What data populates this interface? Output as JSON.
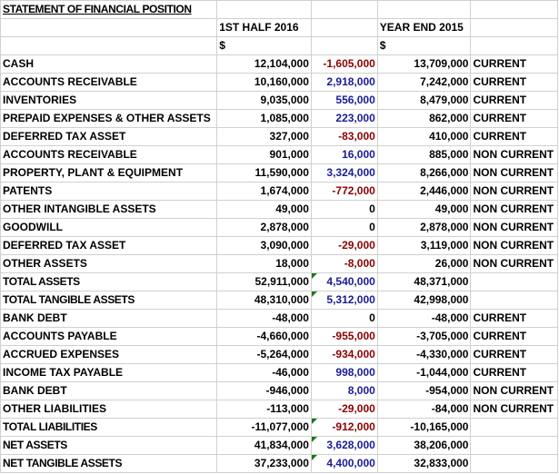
{
  "title": "STATEMENT OF FINANCIAL POSITION",
  "headers": {
    "period1": "1ST HALF 2016",
    "period2": "YEAR END 2015",
    "currency1": "$",
    "currency2": "$"
  },
  "colors": {
    "negative_change": "#8b0000",
    "positive_change": "#1a1a99"
  },
  "rows": [
    {
      "label": "CASH",
      "h1": "12,104,000",
      "chg": "-1,605,000",
      "dir": "neg",
      "ye": "13,709,000",
      "cls": "CURRENT"
    },
    {
      "label": "ACCOUNTS RECEIVABLE",
      "h1": "10,160,000",
      "chg": "2,918,000",
      "dir": "pos",
      "ye": "7,242,000",
      "cls": "CURRENT"
    },
    {
      "label": "INVENTORIES",
      "h1": "9,035,000",
      "chg": "556,000",
      "dir": "pos",
      "ye": "8,479,000",
      "cls": "CURRENT"
    },
    {
      "label": "PREPAID EXPENSES & OTHER ASSETS",
      "h1": "1,085,000",
      "chg": "223,000",
      "dir": "pos",
      "ye": "862,000",
      "cls": "CURRENT"
    },
    {
      "label": "DEFERRED TAX ASSET",
      "h1": "327,000",
      "chg": "-83,000",
      "dir": "neg",
      "ye": "410,000",
      "cls": "CURRENT"
    },
    {
      "label": "ACCOUNTS RECEIVABLE",
      "h1": "901,000",
      "chg": "16,000",
      "dir": "pos",
      "ye": "885,000",
      "cls": "NON CURRENT"
    },
    {
      "label": "PROPERTY, PLANT & EQUIPMENT",
      "h1": "11,590,000",
      "chg": "3,324,000",
      "dir": "pos",
      "ye": "8,266,000",
      "cls": "NON CURRENT"
    },
    {
      "label": "PATENTS",
      "h1": "1,674,000",
      "chg": "-772,000",
      "dir": "neg",
      "ye": "2,446,000",
      "cls": "NON CURRENT"
    },
    {
      "label": "OTHER INTANGIBLE ASSETS",
      "h1": "49,000",
      "chg": "0",
      "dir": "zero",
      "ye": "49,000",
      "cls": "NON CURRENT"
    },
    {
      "label": "GOODWILL",
      "h1": "2,878,000",
      "chg": "0",
      "dir": "zero",
      "ye": "2,878,000",
      "cls": "NON CURRENT"
    },
    {
      "label": "DEFERRED TAX ASSET",
      "h1": "3,090,000",
      "chg": "-29,000",
      "dir": "neg",
      "ye": "3,119,000",
      "cls": "NON CURRENT"
    },
    {
      "label": "OTHER ASSETS",
      "h1": "18,000",
      "chg": "-8,000",
      "dir": "neg",
      "ye": "26,000",
      "cls": "NON CURRENT"
    },
    {
      "label": "TOTAL ASSETS",
      "h1": "52,911,000",
      "chg": "4,540,000",
      "dir": "pos",
      "ye": "48,371,000",
      "cls": "",
      "total": true,
      "ind": true
    },
    {
      "label": "TOTAL TANGIBLE ASSETS",
      "h1": "48,310,000",
      "chg": "5,312,000",
      "dir": "pos",
      "ye": "42,998,000",
      "cls": "",
      "total": true,
      "ind": true
    },
    {
      "label": "BANK DEBT",
      "h1": "-48,000",
      "chg": "0",
      "dir": "zero",
      "ye": "-48,000",
      "cls": "CURRENT"
    },
    {
      "label": "ACCOUNTS PAYABLE",
      "h1": "-4,660,000",
      "chg": "-955,000",
      "dir": "neg",
      "ye": "-3,705,000",
      "cls": "CURRENT"
    },
    {
      "label": "ACCRUED EXPENSES",
      "h1": "-5,264,000",
      "chg": "-934,000",
      "dir": "neg",
      "ye": "-4,330,000",
      "cls": "CURRENT"
    },
    {
      "label": "INCOME TAX PAYABLE",
      "h1": "-46,000",
      "chg": "998,000",
      "dir": "pos",
      "ye": "-1,044,000",
      "cls": "CURRENT"
    },
    {
      "label": "BANK DEBT",
      "h1": "-946,000",
      "chg": "8,000",
      "dir": "pos",
      "ye": "-954,000",
      "cls": "NON CURRENT"
    },
    {
      "label": "OTHER LIABILITIES",
      "h1": "-113,000",
      "chg": "-29,000",
      "dir": "neg",
      "ye": "-84,000",
      "cls": "NON CURRENT"
    },
    {
      "label": "TOTAL LIABILITIES",
      "h1": "-11,077,000",
      "chg": "-912,000",
      "dir": "neg",
      "ye": "-10,165,000",
      "cls": "",
      "total": true,
      "ind": true
    },
    {
      "label": "NET ASSETS",
      "h1": "41,834,000",
      "chg": "3,628,000",
      "dir": "pos",
      "ye": "38,206,000",
      "cls": "",
      "total": true,
      "ind": true
    },
    {
      "label": "NET TANGIBLE ASSETS",
      "h1": "37,233,000",
      "chg": "4,400,000",
      "dir": "pos",
      "ye": "32,833,000",
      "cls": "",
      "total": true,
      "ind": true
    }
  ]
}
